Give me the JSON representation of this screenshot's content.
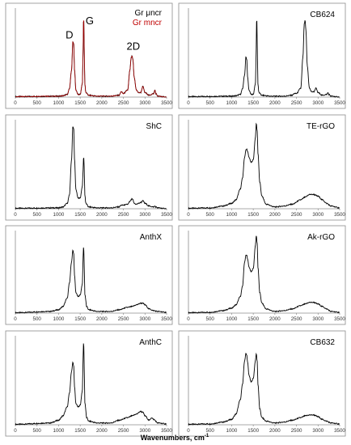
{
  "figure": {
    "xlabel": "Wavenumbers, cm",
    "xlabel_sup": "-1"
  },
  "chart_data": [
    {
      "type": "line",
      "title": "",
      "series": [
        {
          "name": "Gr μncr",
          "color": "#000000"
        },
        {
          "name": "Gr mncr",
          "color": "#c00000"
        }
      ],
      "x": [
        0,
        1000,
        1100,
        1200,
        1250,
        1300,
        1330,
        1350,
        1370,
        1400,
        1450,
        1500,
        1550,
        1570,
        1580,
        1590,
        1610,
        1630,
        1700,
        1900,
        2200,
        2400,
        2450,
        2500,
        2600,
        2650,
        2680,
        2700,
        2720,
        2750,
        2800,
        2850,
        2900,
        2950,
        3000,
        3100,
        3200,
        3230,
        3250,
        3300,
        3500
      ],
      "y": [
        0.005,
        0.01,
        0.015,
        0.03,
        0.09,
        0.3,
        0.62,
        0.6,
        0.3,
        0.08,
        0.03,
        0.03,
        0.15,
        0.55,
        1.0,
        0.6,
        0.14,
        0.05,
        0.02,
        0.01,
        0.01,
        0.02,
        0.06,
        0.04,
        0.08,
        0.3,
        0.44,
        0.46,
        0.42,
        0.22,
        0.08,
        0.05,
        0.05,
        0.12,
        0.05,
        0.02,
        0.04,
        0.08,
        0.04,
        0.01,
        0.0
      ],
      "annotations": [
        {
          "text": "D",
          "x": 1250,
          "y": 0.66
        },
        {
          "text": "G",
          "x": 1720,
          "y": 0.82
        },
        {
          "text": "2D",
          "x": 2730,
          "y": 0.53
        }
      ],
      "xticks": [
        0,
        500,
        1000,
        1500,
        2000,
        2500,
        3000,
        3500
      ],
      "xlim": [
        0,
        3500
      ]
    },
    {
      "type": "line",
      "title": "CB624",
      "series": [
        {
          "color": "#000000"
        }
      ],
      "x": [
        0,
        1000,
        1100,
        1200,
        1250,
        1300,
        1330,
        1350,
        1370,
        1400,
        1450,
        1500,
        1550,
        1570,
        1580,
        1590,
        1610,
        1630,
        1700,
        1900,
        2200,
        2400,
        2450,
        2500,
        2600,
        2650,
        2680,
        2700,
        2720,
        2750,
        2800,
        2850,
        2900,
        2950,
        3000,
        3100,
        3200,
        3230,
        3250,
        3300,
        3500
      ],
      "y": [
        0.005,
        0.01,
        0.015,
        0.03,
        0.09,
        0.25,
        0.45,
        0.42,
        0.22,
        0.08,
        0.03,
        0.03,
        0.15,
        0.55,
        1.0,
        0.6,
        0.14,
        0.05,
        0.02,
        0.01,
        0.01,
        0.02,
        0.04,
        0.04,
        0.1,
        0.45,
        0.82,
        0.86,
        0.74,
        0.35,
        0.1,
        0.06,
        0.06,
        0.1,
        0.05,
        0.02,
        0.03,
        0.05,
        0.03,
        0.01,
        0.0
      ],
      "xticks": [
        0,
        500,
        1000,
        1500,
        2000,
        2500,
        3000,
        3500
      ],
      "xlim": [
        0,
        3500
      ]
    },
    {
      "type": "line",
      "title": "ShC",
      "series": [
        {
          "color": "#000000"
        }
      ],
      "x": [
        0,
        1000,
        1100,
        1200,
        1250,
        1300,
        1330,
        1350,
        1370,
        1400,
        1450,
        1500,
        1550,
        1570,
        1580,
        1590,
        1610,
        1630,
        1700,
        1900,
        2200,
        2400,
        2450,
        2500,
        2600,
        2650,
        2680,
        2700,
        2720,
        2750,
        2800,
        2850,
        2900,
        2950,
        3000,
        3100,
        3200,
        3230,
        3250,
        3300,
        3500
      ],
      "y": [
        0.005,
        0.01,
        0.02,
        0.06,
        0.15,
        0.55,
        0.92,
        0.9,
        0.55,
        0.22,
        0.12,
        0.12,
        0.25,
        0.45,
        0.62,
        0.48,
        0.15,
        0.06,
        0.02,
        0.01,
        0.01,
        0.02,
        0.04,
        0.04,
        0.05,
        0.08,
        0.1,
        0.11,
        0.1,
        0.06,
        0.05,
        0.06,
        0.07,
        0.09,
        0.06,
        0.03,
        0.02,
        0.03,
        0.02,
        0.01,
        0.0
      ],
      "xticks": [
        0,
        500,
        1000,
        1500,
        2000,
        2500,
        3000,
        3500
      ],
      "xlim": [
        0,
        3500
      ]
    },
    {
      "type": "line",
      "title": "TE-rGO",
      "series": [
        {
          "color": "#000000"
        }
      ],
      "x": [
        0,
        500,
        800,
        1000,
        1100,
        1200,
        1250,
        1300,
        1330,
        1350,
        1370,
        1400,
        1450,
        1500,
        1550,
        1570,
        1590,
        1610,
        1650,
        1700,
        1800,
        2000,
        2200,
        2400,
        2600,
        2700,
        2800,
        2900,
        3000,
        3100,
        3200,
        3300,
        3500
      ],
      "y": [
        0.005,
        0.01,
        0.03,
        0.06,
        0.1,
        0.22,
        0.34,
        0.58,
        0.66,
        0.67,
        0.64,
        0.58,
        0.52,
        0.55,
        0.8,
        0.96,
        0.88,
        0.62,
        0.3,
        0.14,
        0.05,
        0.02,
        0.03,
        0.05,
        0.1,
        0.13,
        0.16,
        0.16,
        0.14,
        0.1,
        0.06,
        0.03,
        0.01
      ],
      "xticks": [
        0,
        500,
        1000,
        1500,
        2000,
        2500,
        3000,
        3500
      ],
      "xlim": [
        0,
        3500
      ]
    },
    {
      "type": "line",
      "title": "AnthX",
      "series": [
        {
          "color": "#000000"
        }
      ],
      "x": [
        0,
        800,
        1000,
        1100,
        1200,
        1250,
        1300,
        1330,
        1350,
        1370,
        1400,
        1450,
        1500,
        1550,
        1570,
        1580,
        1590,
        1610,
        1650,
        1700,
        1900,
        2200,
        2400,
        2600,
        2700,
        2800,
        2900,
        2950,
        3000,
        3100,
        3200,
        3300,
        3500
      ],
      "y": [
        0.005,
        0.02,
        0.04,
        0.08,
        0.18,
        0.36,
        0.62,
        0.76,
        0.72,
        0.45,
        0.25,
        0.2,
        0.22,
        0.35,
        0.7,
        0.84,
        0.62,
        0.22,
        0.08,
        0.04,
        0.02,
        0.02,
        0.04,
        0.07,
        0.08,
        0.1,
        0.12,
        0.12,
        0.1,
        0.05,
        0.03,
        0.02,
        0.01
      ],
      "xticks": [
        0,
        500,
        1000,
        1500,
        2000,
        2500,
        3000,
        3500
      ],
      "xlim": [
        0,
        3500
      ]
    },
    {
      "type": "line",
      "title": "Ak-rGO",
      "series": [
        {
          "color": "#000000"
        }
      ],
      "x": [
        0,
        500,
        800,
        1000,
        1100,
        1200,
        1250,
        1300,
        1330,
        1350,
        1370,
        1400,
        1450,
        1500,
        1550,
        1570,
        1590,
        1610,
        1650,
        1700,
        1800,
        2000,
        2200,
        2400,
        2600,
        2700,
        2800,
        2900,
        3000,
        3100,
        3200,
        3300,
        3500
      ],
      "y": [
        0.005,
        0.01,
        0.03,
        0.06,
        0.1,
        0.2,
        0.32,
        0.62,
        0.7,
        0.7,
        0.65,
        0.56,
        0.5,
        0.54,
        0.82,
        0.94,
        0.85,
        0.55,
        0.25,
        0.12,
        0.05,
        0.02,
        0.03,
        0.05,
        0.09,
        0.11,
        0.13,
        0.13,
        0.11,
        0.08,
        0.05,
        0.02,
        0.01
      ],
      "xticks": [
        0,
        500,
        1000,
        1500,
        2000,
        2500,
        3000,
        3500
      ],
      "xlim": [
        0,
        3500
      ]
    },
    {
      "type": "line",
      "title": "AnthC",
      "series": [
        {
          "color": "#000000"
        }
      ],
      "x": [
        0,
        800,
        1000,
        1100,
        1200,
        1250,
        1300,
        1330,
        1350,
        1370,
        1400,
        1450,
        1500,
        1550,
        1570,
        1580,
        1590,
        1610,
        1650,
        1700,
        1900,
        2200,
        2400,
        2600,
        2700,
        2800,
        2900,
        2950,
        3000,
        3100,
        3150,
        3200,
        3300,
        3500
      ],
      "y": [
        0.005,
        0.02,
        0.05,
        0.1,
        0.2,
        0.35,
        0.6,
        0.7,
        0.66,
        0.42,
        0.24,
        0.2,
        0.22,
        0.38,
        0.78,
        0.98,
        0.7,
        0.24,
        0.08,
        0.04,
        0.02,
        0.02,
        0.05,
        0.08,
        0.1,
        0.12,
        0.15,
        0.14,
        0.1,
        0.05,
        0.08,
        0.06,
        0.02,
        0.01
      ],
      "xticks": [
        0,
        500,
        1000,
        1500,
        2000,
        2500,
        3000,
        3500
      ],
      "xlim": [
        0,
        3500
      ]
    },
    {
      "type": "line",
      "title": "CB632",
      "series": [
        {
          "color": "#000000"
        }
      ],
      "x": [
        0,
        500,
        800,
        1000,
        1100,
        1200,
        1250,
        1300,
        1330,
        1350,
        1370,
        1400,
        1450,
        1500,
        1550,
        1570,
        1590,
        1610,
        1650,
        1700,
        1800,
        2000,
        2200,
        2400,
        2600,
        2700,
        2800,
        2900,
        3000,
        3100,
        3200,
        3300,
        3500
      ],
      "y": [
        0.005,
        0.01,
        0.03,
        0.06,
        0.12,
        0.28,
        0.45,
        0.72,
        0.8,
        0.78,
        0.7,
        0.56,
        0.48,
        0.52,
        0.72,
        0.8,
        0.72,
        0.45,
        0.18,
        0.08,
        0.04,
        0.02,
        0.03,
        0.05,
        0.08,
        0.1,
        0.11,
        0.11,
        0.09,
        0.06,
        0.04,
        0.02,
        0.01
      ],
      "xticks": [
        0,
        500,
        1000,
        1500,
        2000,
        2500,
        3000,
        3500
      ],
      "xlim": [
        0,
        3500
      ]
    }
  ]
}
